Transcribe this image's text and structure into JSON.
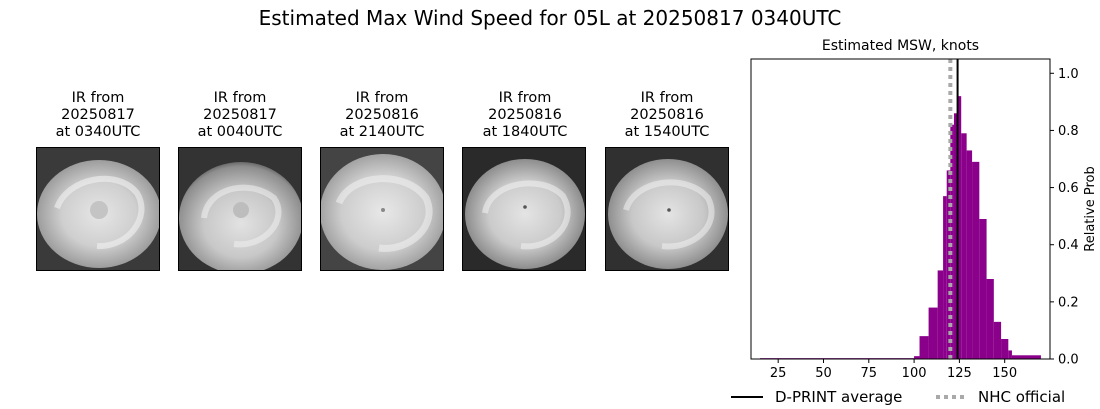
{
  "title": "Estimated Max Wind Speed for 05L at 20250817 0340UTC",
  "ir_panels": [
    {
      "line1": "IR from",
      "line2": "20250817",
      "line3": "at 0340UTC"
    },
    {
      "line1": "IR from",
      "line2": "20250817",
      "line3": "at 0040UTC"
    },
    {
      "line1": "IR from",
      "line2": "20250816",
      "line3": "at 2140UTC"
    },
    {
      "line1": "IR from",
      "line2": "20250816",
      "line3": "at 1840UTC"
    },
    {
      "line1": "IR from",
      "line2": "20250816",
      "line3": "at 1540UTC"
    }
  ],
  "chart_data": {
    "type": "bar",
    "title": "Estimated MSW, knots",
    "xlabel": "",
    "ylabel": "Relative Prob",
    "xlim": [
      10,
      175
    ],
    "ylim": [
      0,
      1.05
    ],
    "xticks": [
      25,
      50,
      75,
      100,
      125,
      150
    ],
    "yticks": [
      0.0,
      0.2,
      0.4,
      0.6,
      0.8,
      1.0
    ],
    "yticks_side": "right",
    "bar_color": "#8b008b",
    "bins": [
      {
        "x0": 15,
        "x1": 100,
        "value": 0.003
      },
      {
        "x0": 100,
        "x1": 103,
        "value": 0.01
      },
      {
        "x0": 103,
        "x1": 108,
        "value": 0.08
      },
      {
        "x0": 108,
        "x1": 113,
        "value": 0.18
      },
      {
        "x0": 113,
        "x1": 116,
        "value": 0.31
      },
      {
        "x0": 116,
        "x1": 118,
        "value": 0.57
      },
      {
        "x0": 118,
        "x1": 120,
        "value": 0.66
      },
      {
        "x0": 120,
        "x1": 122,
        "value": 0.82
      },
      {
        "x0": 122,
        "x1": 124,
        "value": 0.86
      },
      {
        "x0": 124,
        "x1": 126,
        "value": 0.92
      },
      {
        "x0": 126,
        "x1": 129,
        "value": 0.79
      },
      {
        "x0": 129,
        "x1": 132,
        "value": 0.73
      },
      {
        "x0": 132,
        "x1": 136,
        "value": 0.69
      },
      {
        "x0": 136,
        "x1": 140,
        "value": 0.49
      },
      {
        "x0": 140,
        "x1": 144,
        "value": 0.28
      },
      {
        "x0": 144,
        "x1": 148,
        "value": 0.13
      },
      {
        "x0": 148,
        "x1": 152,
        "value": 0.07
      },
      {
        "x0": 152,
        "x1": 154,
        "value": 0.03
      },
      {
        "x0": 154,
        "x1": 170,
        "value": 0.013
      }
    ],
    "dprint_average": 124,
    "nhc_official": 120,
    "legend": {
      "placement": "bottom",
      "entries": [
        {
          "label": "D-PRINT average",
          "style": "solid",
          "color": "#000000"
        },
        {
          "label": "NHC official",
          "style": "dotted",
          "color": "#a9a9a9"
        }
      ]
    }
  }
}
